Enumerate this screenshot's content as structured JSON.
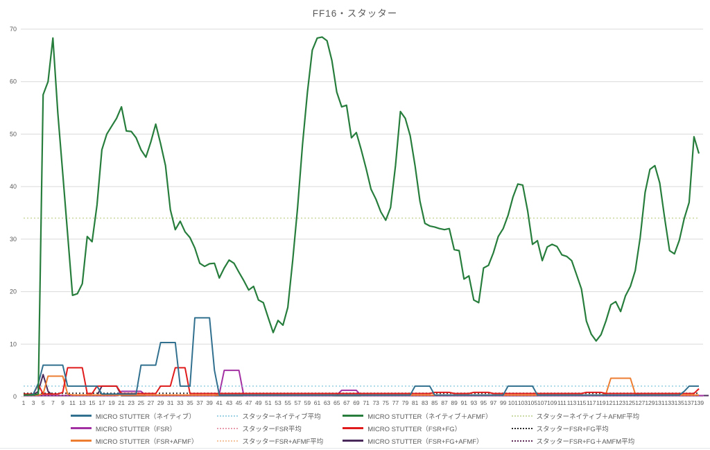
{
  "title": "FF16・スタッター",
  "axes": {
    "y_ticks": [
      0,
      10,
      20,
      30,
      40,
      50,
      60,
      70
    ],
    "x_first_label": 1,
    "x_last_label": 139,
    "x_label_step": 2,
    "label_color": "#595959",
    "grid_color": "#d9d9d9"
  },
  "chart_data": {
    "type": "line",
    "title": "FF16・スタッター",
    "x": {
      "start": 1,
      "end": 139,
      "step": 1
    },
    "ylim": [
      0,
      70
    ],
    "y_step": 10,
    "grid": true,
    "legend_position": "bottom",
    "series": [
      {
        "slug": "micro-stutter-native",
        "name": "MICRO STUTTER（ネイティブ）",
        "color": "#31708f",
        "style": "solid",
        "width": 2,
        "values": [
          0.3,
          0.3,
          0.5,
          2.5,
          6,
          6,
          6,
          6,
          6,
          2,
          2,
          2,
          2,
          2,
          2,
          2,
          0.5,
          0.5,
          0.5,
          0.5,
          0.5,
          0.5,
          0.5,
          0.5,
          6,
          6,
          6,
          6,
          10.3,
          10.3,
          10.3,
          10.3,
          2,
          2,
          2,
          15,
          15,
          15,
          15,
          5,
          0.3,
          0.3,
          0.3,
          0.3,
          0.3,
          0.3,
          0.3,
          0.3,
          0.3,
          0.3,
          0.3,
          0.3,
          0.3,
          0.3,
          0.3,
          0.3,
          0.3,
          0.3,
          0.3,
          0.3,
          0.3,
          0.3,
          0.3,
          0.3,
          0.3,
          0.3,
          0.3,
          0.3,
          0.3,
          0.3,
          0.3,
          0.3,
          0.3,
          0.3,
          0.3,
          0.3,
          0.3,
          0.3,
          0.3,
          0.3,
          2,
          2,
          2,
          2,
          0.3,
          0.3,
          0.3,
          0.3,
          0.3,
          0.3,
          0.3,
          0.3,
          0.3,
          0.3,
          0.3,
          0.3,
          0.3,
          0.3,
          0.3,
          2,
          2,
          2,
          2,
          2,
          2,
          0.3,
          0.3,
          0.3,
          0.3,
          0.3,
          0.3,
          0.3,
          0.3,
          0.3,
          0.3,
          0.3,
          0.3,
          0.3,
          0.3,
          0.3,
          0.3,
          0.3,
          0.3,
          0.3,
          0.3,
          0.3,
          0.3,
          0.3,
          0.3,
          0.3,
          0.3,
          0.3,
          0.3,
          0.3,
          0.3,
          1,
          2,
          2,
          2
        ]
      },
      {
        "slug": "avg-native",
        "name": "スタッターネイティブ平均",
        "color": "#9cd2e2",
        "style": "dotted",
        "width": 1.6,
        "value": 2
      },
      {
        "slug": "micro-stutter-native-afmf",
        "name": "MICRO STUTTER（ネイティブ＋AFMF）",
        "color": "#267d3c",
        "style": "solid",
        "width": 2.2,
        "values": [
          0.3,
          0.3,
          0.3,
          0.5,
          57.5,
          60,
          68.3,
          54,
          42.5,
          31,
          19.3,
          19.6,
          21.5,
          30.5,
          29.5,
          36.5,
          47,
          50,
          51.5,
          53,
          55.2,
          50.6,
          50.5,
          49.3,
          47,
          45.6,
          48.5,
          51.9,
          48.2,
          44,
          35.6,
          31.8,
          33.4,
          31.4,
          30.3,
          28.3,
          25.4,
          24.8,
          25.3,
          25.4,
          22.6,
          24.5,
          26,
          25.4,
          23.7,
          22.1,
          20.3,
          21,
          18.4,
          17.9,
          15,
          12.2,
          14.5,
          13.6,
          17,
          26,
          36,
          48,
          58,
          66,
          68.3,
          68.5,
          67.8,
          64,
          58,
          55.2,
          55.5,
          49.3,
          50.3,
          47,
          43.4,
          39.5,
          37.6,
          35.2,
          33.6,
          36,
          44,
          54.3,
          53,
          49.7,
          44,
          37.2,
          33,
          32.5,
          32.3,
          32,
          31.8,
          32,
          28,
          27.8,
          22.4,
          23,
          18.4,
          17.9,
          24.5,
          25,
          27.4,
          30.5,
          32,
          34.5,
          38,
          40.5,
          40.3,
          35.4,
          29,
          29.7,
          25.9,
          28.5,
          29,
          28.6,
          27,
          26.7,
          25.9,
          23.2,
          20.5,
          14.4,
          11.9,
          10.6,
          11.8,
          14.4,
          17.5,
          18.1,
          16.2,
          19.2,
          21,
          24,
          30.3,
          38.9,
          43.3,
          44,
          40.7,
          34,
          27.8,
          27.2,
          29.8,
          33.9,
          37,
          49.5,
          46.3
        ]
      },
      {
        "slug": "avg-native-afmf",
        "name": "スタッターネイティブ＋AFMF平均",
        "color": "#cbd9a2",
        "style": "dotted",
        "width": 1.6,
        "value": 34
      },
      {
        "slug": "micro-stutter-fsr",
        "name": "MICRO STUTTER（FSR）",
        "color": "#a330a3",
        "style": "solid",
        "width": 2,
        "values": [
          0.2,
          0.2,
          0.2,
          0.2,
          0.2,
          0.2,
          0.2,
          0.2,
          0.2,
          0.2,
          0.2,
          0.2,
          0.2,
          0.2,
          0.2,
          0.2,
          0.2,
          0.2,
          0.2,
          0.2,
          1,
          1,
          1,
          1,
          1,
          0.2,
          0.2,
          0.2,
          0.2,
          0.2,
          0.2,
          0.2,
          0.2,
          0.2,
          0.2,
          0.2,
          0.2,
          0.2,
          0.2,
          0.2,
          0.5,
          5,
          5,
          5,
          5,
          0.2,
          0.2,
          0.2,
          0.2,
          0.2,
          0.2,
          0.2,
          0.2,
          0.2,
          0.2,
          0.2,
          0.2,
          0.2,
          0.2,
          0.2,
          0.2,
          0.2,
          0.2,
          0.2,
          0.3,
          1.2,
          1.2,
          1.2,
          1.2,
          0.2,
          0.2,
          0.2,
          0.2,
          0.2,
          0.2,
          0.2,
          0.2,
          0.2,
          0.2,
          0.2,
          0.2,
          0.2,
          0.2,
          0.2,
          0.2,
          0.2,
          0.2,
          0.2,
          0.2,
          0.2,
          0.2,
          0.2,
          0.2,
          0.2,
          0.2,
          0.2,
          0.2,
          0.2,
          0.2,
          0.2,
          0.2,
          0.2,
          0.2,
          0.2,
          0.2,
          0.2,
          0.2,
          0.2,
          0.2,
          0.2,
          0.2,
          0.2,
          0.2,
          0.2,
          0.2,
          0.2,
          0.2,
          0.2,
          0.2,
          0.2,
          0.2,
          0.2,
          0.2,
          0.2,
          0.2,
          0.2,
          0.2,
          0.2,
          0.2,
          0.2,
          0.2,
          0.2,
          0.2,
          0.2,
          0.2,
          0.2,
          0.2,
          0.2,
          0.2,
          0.2
        ]
      },
      {
        "slug": "avg-fsr",
        "name": "スタッターFSR平均",
        "color": "#e79bab",
        "style": "dotted",
        "width": 1.6,
        "value": 0.45
      },
      {
        "slug": "micro-stutter-fsr-fg",
        "name": "MICRO STUTTER（FSR+FG）",
        "color": "#df1b1b",
        "style": "solid",
        "width": 2,
        "values": [
          0.5,
          0.5,
          0.5,
          2.3,
          0.5,
          0.5,
          0.5,
          0.5,
          0.8,
          5.5,
          5.5,
          5.5,
          5.5,
          0.6,
          0.6,
          2,
          2,
          2,
          2,
          2,
          0.6,
          0.6,
          0.6,
          0.6,
          0.6,
          0.6,
          0.6,
          0.6,
          2,
          2,
          2,
          5.5,
          5.5,
          5.5,
          0.6,
          0.6,
          0.6,
          0.6,
          0.6,
          0.6,
          0.6,
          0.6,
          0.6,
          0.6,
          0.6,
          0.6,
          0.6,
          0.6,
          0.6,
          0.6,
          0.6,
          0.6,
          0.6,
          0.6,
          0.6,
          0.6,
          0.6,
          0.6,
          0.6,
          0.6,
          0.6,
          0.6,
          0.6,
          0.6,
          0.6,
          0.6,
          0.6,
          0.6,
          0.6,
          0.6,
          0.6,
          0.6,
          0.6,
          0.6,
          0.6,
          0.6,
          0.6,
          0.6,
          0.6,
          0.6,
          0.6,
          0.6,
          0.6,
          0.6,
          0.8,
          0.8,
          0.8,
          0.8,
          0.6,
          0.6,
          0.6,
          0.6,
          0.8,
          0.8,
          0.8,
          0.8,
          0.6,
          0.6,
          0.6,
          0.6,
          0.6,
          0.6,
          0.6,
          0.6,
          0.6,
          0.6,
          0.6,
          0.6,
          0.6,
          0.6,
          0.6,
          0.6,
          0.6,
          0.6,
          0.6,
          0.8,
          0.8,
          0.8,
          0.8,
          0.6,
          0.6,
          0.6,
          0.6,
          0.6,
          0.6,
          0.6,
          0.6,
          0.6,
          0.6,
          0.6,
          0.6,
          0.6,
          0.6,
          0.6,
          0.6,
          0.6,
          0.6,
          0.6,
          1.5
        ]
      },
      {
        "slug": "avg-fsr-fg",
        "name": "スタッターFSR+FG平均",
        "color": "#262626",
        "style": "dotted",
        "width": 1.6,
        "value": 0.65
      },
      {
        "slug": "micro-stutter-fsr-afmf",
        "name": "MICRO STUTTER（FSR+AFMF）",
        "color": "#ed7d31",
        "style": "solid",
        "width": 2,
        "values": [
          0.3,
          0.3,
          0.3,
          0.3,
          0.5,
          3.9,
          3.9,
          3.9,
          3.9,
          0.5,
          0.3,
          0.3,
          0.3,
          0.3,
          0.3,
          0.3,
          0.3,
          0.3,
          0.3,
          0.3,
          0.3,
          0.3,
          0.3,
          0.3,
          0.3,
          0.3,
          0.3,
          0.3,
          0.3,
          0.3,
          0.3,
          0.3,
          0.3,
          0.3,
          0.3,
          0.3,
          0.3,
          0.3,
          0.3,
          0.3,
          0.3,
          0.3,
          0.3,
          0.3,
          0.3,
          0.3,
          0.3,
          0.3,
          0.3,
          0.3,
          0.3,
          0.3,
          0.3,
          0.3,
          0.3,
          0.3,
          0.3,
          0.3,
          0.3,
          0.3,
          0.3,
          0.3,
          0.3,
          0.3,
          0.3,
          0.3,
          0.3,
          0.3,
          0.3,
          0.3,
          0.3,
          0.3,
          0.3,
          0.3,
          0.3,
          0.3,
          0.3,
          0.3,
          0.3,
          0.3,
          0.3,
          0.3,
          0.3,
          0.3,
          0.3,
          0.3,
          0.3,
          0.3,
          0.3,
          0.3,
          0.3,
          0.3,
          0.3,
          0.3,
          0.3,
          0.3,
          0.3,
          0.3,
          0.3,
          0.3,
          0.3,
          0.3,
          0.3,
          0.3,
          0.3,
          0.3,
          0.3,
          0.3,
          0.3,
          0.3,
          0.3,
          0.3,
          0.3,
          0.3,
          0.3,
          0.3,
          0.3,
          0.3,
          0.3,
          0.5,
          3.5,
          3.5,
          3.5,
          3.5,
          3.5,
          0.5,
          0.3,
          0.3,
          0.3,
          0.3,
          0.3,
          0.3,
          0.3,
          0.3,
          0.3,
          0.3,
          0.3,
          0.3,
          0.3
        ]
      },
      {
        "slug": "avg-fsr-afmf",
        "name": "スタッターFSR+AFMF平均",
        "color": "#f6c29b",
        "style": "dotted",
        "width": 1.6,
        "value": 0.35
      },
      {
        "slug": "micro-stutter-fsr-fg-afmf",
        "name": "MICRO STUTTER（FSR+FG+AFMF）",
        "color": "#4a2a5a",
        "style": "solid",
        "width": 2,
        "values": [
          0.2,
          0.2,
          0.3,
          1,
          4.2,
          1,
          0.2,
          0.2,
          0.2,
          0.2,
          0.2,
          0.2,
          0.2,
          0.2,
          0.2,
          0.2,
          2,
          2,
          2,
          2,
          0.2,
          0.2,
          0.2,
          0.2,
          0.2,
          0.2,
          0.2,
          0.2,
          0.2,
          0.2,
          0.2,
          0.2,
          0.2,
          0.2,
          0.2,
          0.2,
          0.2,
          0.2,
          0.2,
          0.2,
          0.2,
          0.2,
          0.2,
          0.2,
          0.2,
          0.2,
          0.2,
          0.2,
          0.2,
          0.2,
          0.2,
          0.2,
          0.2,
          0.2,
          0.2,
          0.2,
          0.2,
          0.2,
          0.2,
          0.2,
          0.2,
          0.2,
          0.2,
          0.2,
          0.2,
          0.2,
          0.2,
          0.2,
          0.2,
          0.2,
          0.2,
          0.2,
          0.2,
          0.2,
          0.2,
          0.2,
          0.2,
          0.2,
          0.2,
          0.2,
          0.2,
          0.2,
          0.2,
          0.2,
          0.2,
          0.2,
          0.2,
          0.2,
          0.2,
          0.2,
          0.2,
          0.2,
          0.2,
          0.2,
          0.2,
          0.2,
          0.2,
          0.2,
          0.2,
          0.2,
          0.2,
          0.2,
          0.2,
          0.2,
          0.2,
          0.2,
          0.2,
          0.2,
          0.2,
          0.2,
          0.2,
          0.2,
          0.2,
          0.2,
          0.2,
          0.2,
          0.2,
          0.2,
          0.2,
          0.2,
          0.2,
          0.2,
          0.2,
          0.2,
          0.2,
          0.2,
          0.2,
          0.2,
          0.2,
          0.2,
          0.2,
          0.2,
          0.2,
          0.2,
          0.2,
          0.2,
          0.2,
          0.2,
          0.2,
          0.2,
          0.2
        ]
      },
      {
        "slug": "avg-fsr-fg-amfm",
        "name": "スタッターFSR+FG＋AMFM平均",
        "color": "#5f2a56",
        "style": "dotted",
        "width": 1.6,
        "value": 0.2
      }
    ]
  },
  "legend": {
    "rows": 3,
    "cols": 4,
    "order": [
      0,
      1,
      2,
      3,
      4,
      5,
      6,
      7,
      8,
      9,
      10,
      11
    ]
  }
}
